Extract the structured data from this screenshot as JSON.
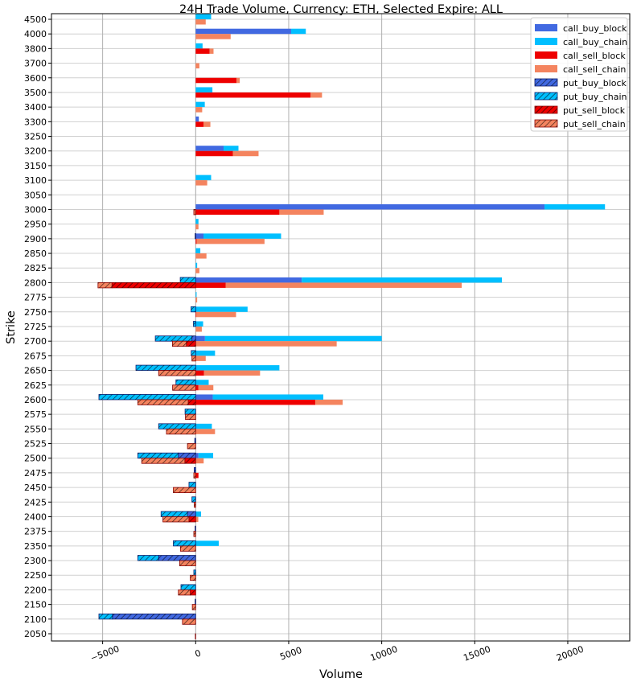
{
  "chart_data": {
    "type": "bar",
    "orientation": "horizontal",
    "stacked": true,
    "title": "24H Trade Volume, Currency: ETH, Selected Expire: ALL",
    "xlabel": "Volume",
    "ylabel": "Strike",
    "xlim": [
      -7750,
      23330
    ],
    "xticks": [
      -5000,
      0,
      5000,
      10000,
      15000,
      20000
    ],
    "xtick_labels": [
      "−5000",
      "0",
      "5000",
      "10000",
      "15000",
      "20000"
    ],
    "grid": true,
    "legend_position": "top-right",
    "categories": [
      "2050",
      "2100",
      "2150",
      "2200",
      "2250",
      "2300",
      "2350",
      "2375",
      "2400",
      "2425",
      "2450",
      "2475",
      "2500",
      "2525",
      "2550",
      "2575",
      "2600",
      "2625",
      "2650",
      "2675",
      "2700",
      "2725",
      "2750",
      "2775",
      "2800",
      "2825",
      "2850",
      "2900",
      "2950",
      "3000",
      "3050",
      "3100",
      "3150",
      "3200",
      "3250",
      "3300",
      "3400",
      "3500",
      "3600",
      "3700",
      "3800",
      "4000",
      "4500"
    ],
    "series": [
      {
        "name": "call_buy_block",
        "group": "call_buy",
        "color": "#4169E1",
        "hatch": false,
        "values": [
          0,
          0,
          0,
          0,
          0,
          0,
          0,
          0,
          0,
          0,
          0,
          0,
          150,
          0,
          0,
          0,
          920,
          0,
          0,
          0,
          500,
          0,
          0,
          0,
          5700,
          0,
          0,
          420,
          0,
          18750,
          0,
          0,
          0,
          1500,
          0,
          170,
          0,
          0,
          0,
          0,
          0,
          5130,
          0
        ]
      },
      {
        "name": "call_buy_chain",
        "group": "call_buy",
        "color": "#00BFFF",
        "hatch": false,
        "values": [
          0,
          0,
          0,
          0,
          0,
          0,
          1240,
          0,
          290,
          0,
          0,
          0,
          790,
          0,
          870,
          0,
          5940,
          700,
          4500,
          1040,
          9500,
          400,
          2790,
          50,
          10760,
          80,
          250,
          4170,
          150,
          3250,
          0,
          830,
          0,
          800,
          0,
          0,
          490,
          900,
          0,
          0,
          370,
          790,
          830
        ]
      },
      {
        "name": "call_sell_block",
        "group": "call_sell",
        "color": "#EE0000",
        "hatch": false,
        "values": [
          0,
          0,
          0,
          0,
          0,
          0,
          0,
          0,
          0,
          0,
          0,
          150,
          0,
          0,
          0,
          0,
          6430,
          150,
          450,
          0,
          0,
          0,
          30,
          0,
          1620,
          0,
          0,
          50,
          0,
          4500,
          0,
          0,
          0,
          2000,
          0,
          420,
          0,
          6170,
          2200,
          0,
          750,
          0,
          0
        ]
      },
      {
        "name": "call_sell_chain",
        "group": "call_sell",
        "color": "#F4845F",
        "hatch": false,
        "values": [
          0,
          0,
          0,
          0,
          0,
          0,
          0,
          0,
          140,
          0,
          0,
          0,
          430,
          0,
          1040,
          0,
          1470,
          800,
          3010,
          540,
          7580,
          330,
          2140,
          80,
          12680,
          200,
          580,
          3650,
          150,
          2380,
          0,
          620,
          0,
          1380,
          0,
          370,
          350,
          620,
          170,
          200,
          210,
          1880,
          540
        ]
      },
      {
        "name": "put_buy_block",
        "group": "put_buy",
        "color": "#4169E1",
        "edge": "#0A1A6E",
        "hatch": true,
        "values": [
          0,
          -4470,
          -30,
          0,
          0,
          -1990,
          0,
          -30,
          -440,
          0,
          0,
          -80,
          -930,
          -50,
          0,
          0,
          0,
          0,
          0,
          0,
          -200,
          0,
          0,
          0,
          0,
          0,
          0,
          -30,
          0,
          0,
          0,
          0,
          0,
          0,
          0,
          0,
          0,
          0,
          0,
          0,
          0,
          0,
          0
        ]
      },
      {
        "name": "put_buy_chain",
        "group": "put_buy",
        "color": "#00BFFF",
        "edge": "#0A1A6E",
        "hatch": true,
        "values": [
          0,
          -730,
          0,
          -790,
          -100,
          -1120,
          -1200,
          0,
          -1420,
          -200,
          -360,
          0,
          -2180,
          0,
          -1990,
          -570,
          -5200,
          -1060,
          -3210,
          -240,
          -1970,
          -120,
          -250,
          0,
          -830,
          0,
          0,
          0,
          0,
          0,
          0,
          0,
          0,
          0,
          0,
          0,
          0,
          0,
          0,
          0,
          0,
          0,
          0
        ]
      },
      {
        "name": "put_sell_block",
        "group": "put_sell",
        "color": "#EE0000",
        "edge": "#8B0000",
        "hatch": true,
        "values": [
          -20,
          0,
          0,
          -290,
          0,
          0,
          0,
          0,
          -360,
          0,
          0,
          0,
          -580,
          0,
          0,
          0,
          -400,
          0,
          0,
          0,
          -500,
          0,
          0,
          0,
          -4500,
          0,
          0,
          0,
          0,
          0,
          0,
          0,
          0,
          0,
          0,
          0,
          0,
          0,
          0,
          0,
          0,
          0,
          0
        ]
      },
      {
        "name": "put_sell_chain",
        "group": "put_sell",
        "color": "#F4845F",
        "edge": "#8B0000",
        "hatch": true,
        "values": [
          0,
          -710,
          -180,
          -640,
          -290,
          -860,
          -820,
          -100,
          -1400,
          -80,
          -1200,
          -100,
          -2320,
          -440,
          -1570,
          -550,
          -2710,
          -1240,
          -1990,
          -200,
          -750,
          0,
          0,
          0,
          -750,
          0,
          0,
          0,
          0,
          -100,
          0,
          0,
          0,
          0,
          0,
          0,
          0,
          0,
          0,
          0,
          0,
          0,
          0
        ]
      }
    ]
  }
}
